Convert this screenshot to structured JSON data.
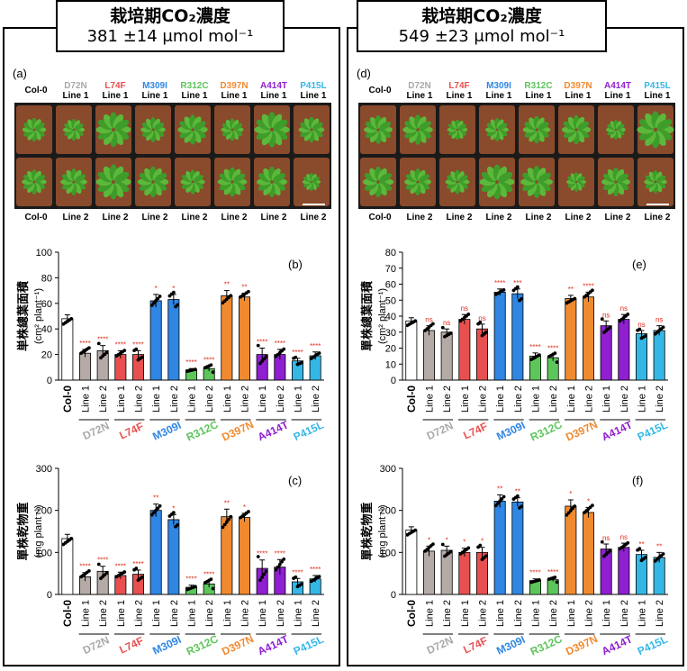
{
  "left": {
    "header_line1": "栽培期CO₂濃度",
    "header_line2": "381 ±14 μmol mol⁻¹",
    "photo_label": "(a)",
    "chart_b_label": "(b)",
    "chart_c_label": "(c)",
    "scale_bar": true
  },
  "right": {
    "header_line1": "栽培期CO₂濃度",
    "header_line2": "549 ±23 μmol mol⁻¹",
    "photo_label": "(d)",
    "chart_e_label": "(e)",
    "chart_f_label": "(f)",
    "scale_bar": true
  },
  "photo_top_labels": [
    "Col-0",
    "D72N",
    "L74F",
    "M309I",
    "R312C",
    "D397N",
    "A414T",
    "P415L"
  ],
  "photo_top_line": "Line 1",
  "photo_bottom_labels": [
    "Col-0",
    "Line 2",
    "Line 2",
    "Line 2",
    "Line 2",
    "Line 2",
    "Line 2",
    "Line 2"
  ],
  "group_colors": {
    "Col-0": "#ffffff",
    "D72N": "#b5aba6",
    "L74F": "#e8504f",
    "M309I": "#2f86e3",
    "R312C": "#5dc65b",
    "D397N": "#f08a2f",
    "A414T": "#8f1fd0",
    "P415L": "#35b7e6"
  },
  "label_colors": {
    "Col-0": "#000000",
    "D72N": "#a9a9a9",
    "L74F": "#e8504f",
    "M309I": "#2f86e3",
    "R312C": "#5dc65b",
    "D397N": "#f08a2f",
    "A414T": "#8f1fd0",
    "P415L": "#35b7e6"
  },
  "x_group_labels": [
    "D72N",
    "L74F",
    "M309I",
    "R312C",
    "D397N",
    "A414T",
    "P415L"
  ],
  "x_line_labels": [
    "Line 1",
    "Line 2"
  ],
  "x_control_label": "Col-0",
  "chart_data": [
    {
      "id": "b",
      "type": "bar",
      "ylabel_jp": "単株總葉面積",
      "ylabel_unit": "(cm² plant⁻¹)",
      "ylim": [
        0,
        100
      ],
      "yticks": [
        0,
        20,
        40,
        60,
        80,
        100
      ],
      "categories": [
        "Col-0",
        "D72N L1",
        "D72N L2",
        "L74F L1",
        "L74F L2",
        "M309I L1",
        "M309I L2",
        "R312C L1",
        "R312C L2",
        "D397N L1",
        "D397N L2",
        "A414T L1",
        "A414T L2",
        "P415L L1",
        "P415L L2"
      ],
      "values": [
        48,
        21,
        23,
        20,
        20,
        62,
        63,
        8,
        9,
        66,
        65,
        20,
        20,
        15,
        19
      ],
      "errors": [
        3,
        3,
        4,
        3,
        3,
        5,
        4,
        1,
        2,
        4,
        3,
        5,
        4,
        2,
        3
      ],
      "significance": [
        "",
        "****",
        "****",
        "****",
        "****",
        "*",
        "*",
        "****",
        "****",
        "**",
        "**",
        "****",
        "****",
        "****",
        "****"
      ]
    },
    {
      "id": "c",
      "type": "bar",
      "ylabel_jp": "單株乾物重",
      "ylabel_unit": "(mg plant⁻¹)",
      "ylim": [
        0,
        300
      ],
      "yticks": [
        0,
        100,
        200,
        300
      ],
      "categories": [
        "Col-0",
        "D72N L1",
        "D72N L2",
        "L74F L1",
        "L74F L2",
        "M309I L1",
        "M309I L2",
        "R312C L1",
        "R312C L2",
        "D397N L1",
        "D397N L2",
        "A414T L1",
        "A414T L2",
        "P415L L1",
        "P415L L2"
      ],
      "values": [
        133,
        42,
        55,
        45,
        48,
        200,
        178,
        17,
        25,
        185,
        183,
        62,
        65,
        30,
        37
      ],
      "errors": [
        10,
        10,
        12,
        8,
        10,
        15,
        12,
        5,
        8,
        18,
        10,
        20,
        18,
        8,
        8
      ],
      "significance": [
        "",
        "****",
        "****",
        "****",
        "****",
        "**",
        "*",
        "****",
        "****",
        "**",
        "*",
        "****",
        "****",
        "****",
        "****"
      ]
    },
    {
      "id": "e",
      "type": "bar",
      "ylabel_jp": "單株總葉面積",
      "ylabel_unit": "(cm² plant⁻¹)",
      "ylim": [
        0,
        80
      ],
      "yticks": [
        0,
        10,
        20,
        30,
        40,
        50,
        60,
        70,
        80
      ],
      "categories": [
        "Col-0",
        "D72N L1",
        "D72N L2",
        "L74F L1",
        "L74F L2",
        "M309I L1",
        "M309I L2",
        "R312C L1",
        "R312C L2",
        "D397N L1",
        "D397N L2",
        "A414T L1",
        "A414T L2",
        "P415L L1",
        "P415L L2"
      ],
      "values": [
        37,
        31,
        30,
        38,
        32,
        55,
        54,
        15,
        14,
        51,
        52,
        34,
        38,
        29,
        31
      ],
      "errors": [
        2,
        3,
        2,
        3,
        3,
        2,
        3,
        2,
        2,
        2,
        3,
        3,
        3,
        2,
        3
      ],
      "significance": [
        "",
        "ns",
        "ns",
        "ns",
        "ns",
        "****",
        "***",
        "****",
        "****",
        "**",
        "****",
        "ns",
        "ns",
        "ns",
        "ns"
      ]
    },
    {
      "id": "f",
      "type": "bar",
      "ylabel_jp": "單株乾物重",
      "ylabel_unit": "(mg plant⁻¹)",
      "ylim": [
        0,
        300
      ],
      "yticks": [
        0,
        100,
        200,
        300
      ],
      "categories": [
        "Col-0",
        "D72N L1",
        "D72N L2",
        "L74F L1",
        "L74F L2",
        "M309I L1",
        "M309I L2",
        "R312C L1",
        "R312C L2",
        "D397N L1",
        "D397N L2",
        "A414T L1",
        "A414T L2",
        "P415L L1",
        "P415L L2"
      ],
      "values": [
        153,
        103,
        105,
        100,
        100,
        222,
        220,
        33,
        35,
        210,
        195,
        108,
        112,
        95,
        88
      ],
      "errors": [
        8,
        12,
        10,
        10,
        12,
        15,
        10,
        4,
        4,
        15,
        12,
        12,
        10,
        10,
        12
      ],
      "significance": [
        "",
        "*",
        "*",
        "*",
        "*",
        "**",
        "**",
        "****",
        "****",
        "*",
        "*",
        "ns",
        "ns",
        "**",
        "**"
      ]
    }
  ]
}
